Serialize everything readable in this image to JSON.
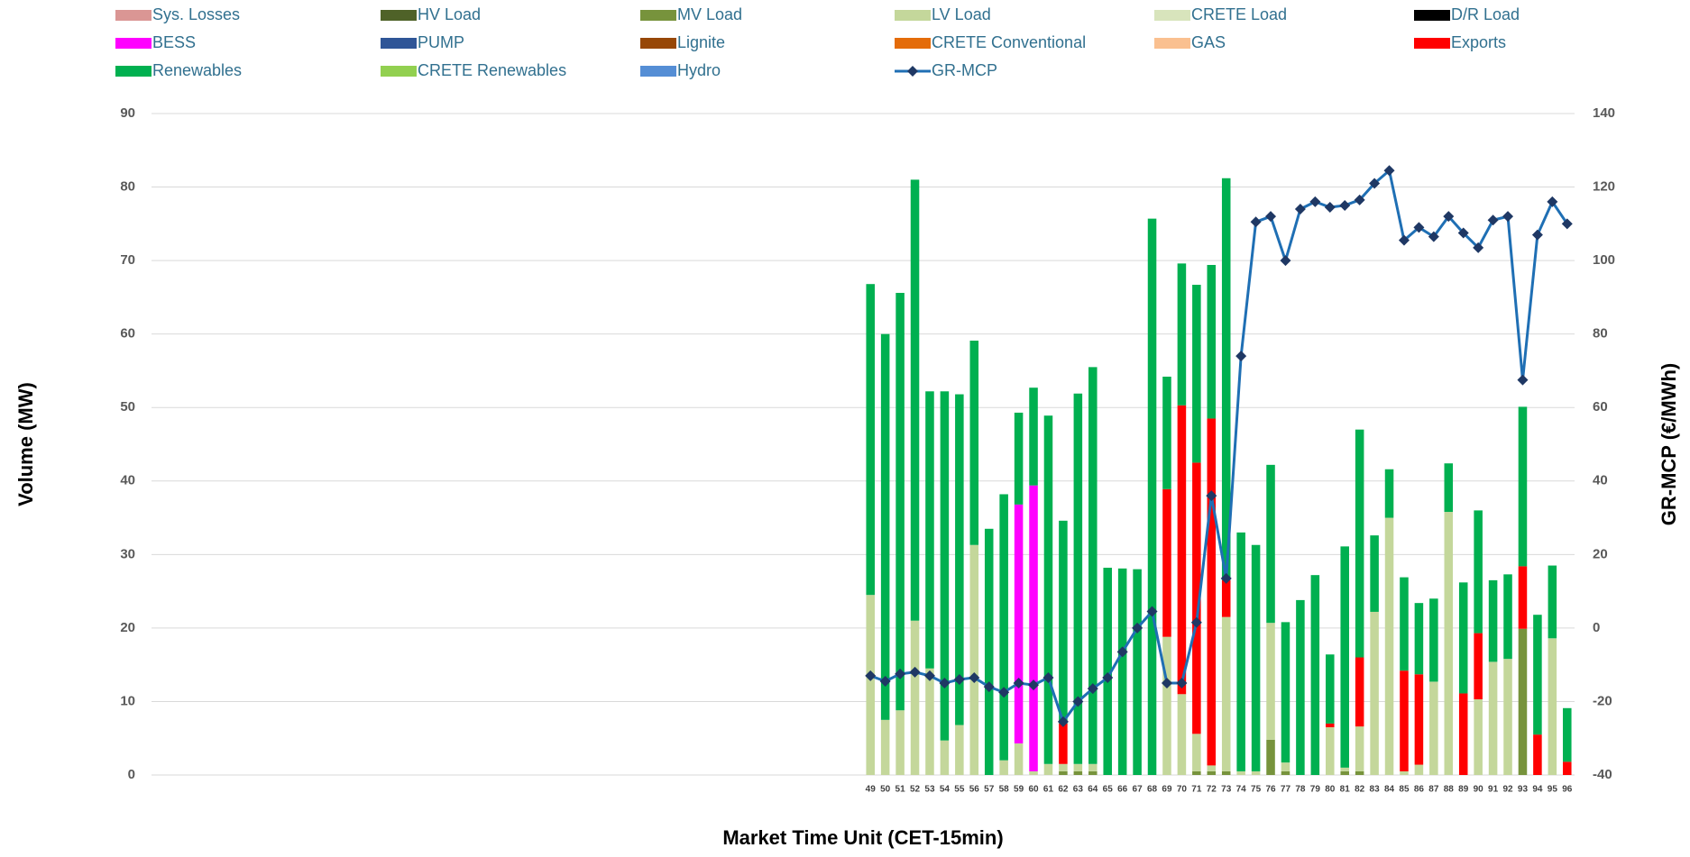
{
  "chart_data": {
    "type": "bar",
    "stacked": true,
    "legend": "top",
    "grid": true,
    "x_label": "Market Time Unit (CET-15min)",
    "y_label": "Volume (MW)",
    "y2_label": "GR-MCP (€/MWh)",
    "x": [
      49,
      50,
      51,
      52,
      53,
      54,
      55,
      56,
      57,
      58,
      59,
      60,
      61,
      62,
      63,
      64,
      65,
      66,
      67,
      68,
      69,
      70,
      71,
      72,
      73,
      74,
      75,
      76,
      77,
      78,
      79,
      80,
      81,
      82,
      83,
      84,
      85,
      86,
      87,
      88,
      89,
      90,
      91,
      92,
      93,
      94,
      95,
      96
    ],
    "xlim": [
      0.5,
      96.5
    ],
    "ylim": [
      0,
      90
    ],
    "yticks": [
      0,
      10,
      20,
      30,
      40,
      50,
      60,
      70,
      80,
      90
    ],
    "y2lim": [
      -40,
      140
    ],
    "y2ticks": [
      -40,
      -20,
      0,
      20,
      40,
      60,
      80,
      100,
      120,
      140
    ],
    "series": [
      {
        "name": "Sys. Losses",
        "color": "#da9694",
        "values": [
          0,
          0,
          0,
          0,
          0,
          0,
          0,
          0,
          0,
          0,
          0,
          0,
          0,
          0,
          0,
          0,
          0,
          0,
          0,
          0,
          0,
          0,
          0,
          0,
          0,
          0,
          0,
          0,
          0,
          0,
          0,
          0,
          0,
          0,
          0,
          0,
          0,
          0,
          0,
          0,
          0,
          0,
          0,
          0,
          0,
          0,
          0,
          0
        ]
      },
      {
        "name": "HV Load",
        "color": "#4f6228",
        "values": [
          0,
          0,
          0,
          0,
          0,
          0,
          0,
          0,
          0,
          0,
          0,
          0,
          0,
          0,
          0,
          0,
          0,
          0,
          0,
          0,
          0,
          0,
          0,
          0,
          0,
          0,
          0,
          0,
          0,
          0,
          0,
          0,
          0,
          0,
          0,
          0,
          0,
          0,
          0,
          0,
          0,
          0,
          0,
          0,
          0,
          0,
          0,
          0
        ]
      },
      {
        "name": "MV Load",
        "color": "#77933c",
        "values": [
          0,
          0,
          0,
          0,
          0,
          0,
          0,
          0,
          0,
          0,
          0,
          0,
          0,
          0.5,
          0.5,
          0.5,
          0,
          0,
          0,
          0,
          0,
          0,
          0.5,
          0.5,
          0.5,
          0,
          0,
          4.8,
          0.5,
          0,
          0,
          0,
          0.5,
          0.5,
          0,
          0,
          0,
          0,
          0,
          0,
          0,
          0,
          0,
          0,
          19.9,
          0,
          0,
          0
        ]
      },
      {
        "name": "LV Load",
        "color": "#c4d79b",
        "values": [
          24.5,
          7.5,
          8.8,
          21,
          14.5,
          4.7,
          6.8,
          31.3,
          0,
          2,
          4.3,
          0.5,
          1.5,
          1,
          1,
          1,
          0,
          0,
          0,
          0,
          18.8,
          11,
          5.1,
          0.8,
          21,
          0.5,
          0.5,
          15.9,
          1.2,
          0,
          0,
          6.5,
          0.5,
          6.1,
          22.2,
          35,
          0.5,
          1.4,
          12.7,
          35.8,
          0,
          10.3,
          15.4,
          15.8,
          0,
          0,
          18.6,
          0
        ]
      },
      {
        "name": "CRETE Load",
        "color": "#d8e4bc",
        "values": [
          0,
          0,
          0,
          0,
          0,
          0,
          0,
          0,
          0,
          0,
          0,
          0,
          0,
          0,
          0,
          0,
          0,
          0,
          0,
          0,
          0,
          0,
          0,
          0,
          0,
          0,
          0,
          0,
          0,
          0,
          0,
          0,
          0,
          0,
          0,
          0,
          0,
          0,
          0,
          0,
          0,
          0,
          0,
          0,
          0,
          0,
          0,
          0
        ]
      },
      {
        "name": "D/R Load",
        "color": "#000000",
        "values": [
          0,
          0,
          0,
          0,
          0,
          0,
          0,
          0,
          0,
          0,
          0,
          0,
          0,
          0,
          0,
          0,
          0,
          0,
          0,
          0,
          0,
          0,
          0,
          0,
          0,
          0,
          0,
          0,
          0,
          0,
          0,
          0,
          0,
          0,
          0,
          0,
          0,
          0,
          0,
          0,
          0,
          0,
          0,
          0,
          0,
          0,
          0,
          0
        ]
      },
      {
        "name": "BESS",
        "color": "#ff00ff",
        "values": [
          0,
          0,
          0,
          0,
          0,
          0,
          0,
          0,
          0,
          0,
          32.5,
          38.9,
          0,
          0,
          0,
          0,
          0,
          0,
          0,
          0,
          0,
          0,
          0,
          0,
          0,
          0,
          0,
          0,
          0,
          0,
          0,
          0,
          0,
          0,
          0,
          0,
          0,
          0,
          0,
          0,
          0,
          0,
          0,
          0,
          0,
          0,
          0,
          0
        ]
      },
      {
        "name": "PUMP",
        "color": "#2f5597",
        "values": [
          0,
          0,
          0,
          0,
          0,
          0,
          0,
          0,
          0,
          0,
          0,
          0,
          0,
          0,
          0,
          0,
          0,
          0,
          0,
          0,
          0,
          0,
          0,
          0,
          0,
          0,
          0,
          0,
          0,
          0,
          0,
          0,
          0,
          0,
          0,
          0,
          0,
          0,
          0,
          0,
          0,
          0,
          0,
          0,
          0,
          0,
          0,
          0
        ]
      },
      {
        "name": "Lignite",
        "color": "#974706",
        "values": [
          0,
          0,
          0,
          0,
          0,
          0,
          0,
          0,
          0,
          0,
          0,
          0,
          0,
          0,
          0,
          0,
          0,
          0,
          0,
          0,
          0,
          0,
          0,
          0,
          0,
          0,
          0,
          0,
          0,
          0,
          0,
          0,
          0,
          0,
          0,
          0,
          0,
          0,
          0,
          0,
          0,
          0,
          0,
          0,
          0,
          0,
          0,
          0
        ]
      },
      {
        "name": "CRETE Conventional",
        "color": "#e46c0a",
        "values": [
          0,
          0,
          0,
          0,
          0,
          0,
          0,
          0,
          0,
          0,
          0,
          0,
          0,
          0,
          0,
          0,
          0,
          0,
          0,
          0,
          0,
          0,
          0,
          0,
          0,
          0,
          0,
          0,
          0,
          0,
          0,
          0,
          0,
          0,
          0,
          0,
          0,
          0,
          0,
          0,
          0,
          0,
          0,
          0,
          0,
          0,
          0,
          0
        ]
      },
      {
        "name": "GAS",
        "color": "#fac090",
        "values": [
          0,
          0,
          0,
          0,
          0,
          0,
          0,
          0,
          0,
          0,
          0,
          0,
          0,
          0,
          0,
          0,
          0,
          0,
          0,
          0,
          0,
          0,
          0,
          0,
          0,
          0,
          0,
          0,
          0,
          0,
          0,
          0,
          0,
          0,
          0,
          0,
          0,
          0,
          0,
          0,
          0,
          0,
          0,
          0,
          0,
          0,
          0,
          0
        ]
      },
      {
        "name": "Exports",
        "color": "#ff0000",
        "values": [
          0,
          0,
          0,
          0,
          0,
          0,
          0,
          0,
          0,
          0,
          0,
          0,
          0,
          5.5,
          0,
          0,
          0,
          0,
          0,
          0,
          20.1,
          39.3,
          36.9,
          47.2,
          5,
          0,
          0,
          0,
          0,
          0,
          0,
          0.5,
          0,
          9.4,
          0,
          0,
          13.7,
          12.3,
          0,
          0,
          11.1,
          9,
          0,
          0,
          8.5,
          5.5,
          0,
          1.8
        ]
      },
      {
        "name": "Renewables",
        "color": "#00b050",
        "values": [
          42.3,
          52.5,
          56.8,
          60,
          37.7,
          47.5,
          45,
          27.8,
          33.5,
          36.2,
          12.5,
          13.3,
          47.4,
          27.6,
          50.4,
          54,
          28.2,
          28.1,
          28,
          75.7,
          15.3,
          19.3,
          24.2,
          20.9,
          54.7,
          32.5,
          30.8,
          21.5,
          19.1,
          23.8,
          27.2,
          9.4,
          30.1,
          31,
          10.4,
          6.6,
          12.7,
          9.7,
          11.3,
          6.6,
          15.1,
          16.7,
          11.1,
          11.5,
          21.7,
          16.3,
          9.9,
          7.3
        ]
      },
      {
        "name": "CRETE Renewables",
        "color": "#92d050",
        "values": [
          0,
          0,
          0,
          0,
          0,
          0,
          0,
          0,
          0,
          0,
          0,
          0,
          0,
          0,
          0,
          0,
          0,
          0,
          0,
          0,
          0,
          0,
          0,
          0,
          0,
          0,
          0,
          0,
          0,
          0,
          0,
          0,
          0,
          0,
          0,
          0,
          0,
          0,
          0,
          0,
          0,
          0,
          0,
          0,
          0,
          0,
          0,
          0
        ]
      },
      {
        "name": "Hydro",
        "color": "#558ed5",
        "values": [
          0,
          0,
          0,
          0,
          0,
          0,
          0,
          0,
          0,
          0,
          0,
          0,
          0,
          0,
          0,
          0,
          0,
          0,
          0,
          0,
          0,
          0,
          0,
          0,
          0,
          0,
          0,
          0,
          0,
          0,
          0,
          0,
          0,
          0,
          0,
          0,
          0,
          0,
          0,
          0,
          0,
          0,
          0,
          0,
          0,
          0,
          0,
          0
        ]
      },
      {
        "name": "GR-MCP",
        "type": "line",
        "axis": "y2",
        "color": "#1f6fb4",
        "marker_color": "#1f3864",
        "values": [
          -13,
          -14.5,
          -12.5,
          -12,
          -13,
          -15,
          -14,
          -13.5,
          -16,
          -17.5,
          -15,
          -15.5,
          -13.5,
          -25.5,
          -20,
          -16.5,
          -13.5,
          -6.5,
          0,
          4.5,
          -15,
          -15,
          1.5,
          36,
          13.5,
          74,
          110.5,
          112,
          100,
          114,
          116,
          114.5,
          115,
          116.5,
          121,
          124.5,
          105.5,
          109,
          106.5,
          112,
          107.5,
          103.5,
          111,
          112,
          67.5,
          107,
          116,
          110
        ]
      }
    ]
  }
}
